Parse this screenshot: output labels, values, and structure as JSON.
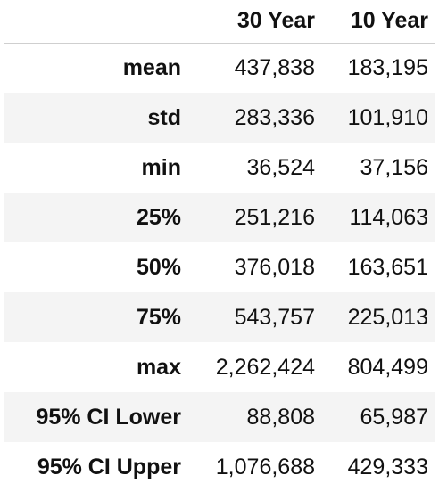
{
  "table": {
    "columns": [
      "",
      "30 Year",
      "10 Year"
    ],
    "rows": [
      {
        "label": "mean",
        "thirty": "437,838",
        "ten": "183,195"
      },
      {
        "label": "std",
        "thirty": "283,336",
        "ten": "101,910"
      },
      {
        "label": "min",
        "thirty": "36,524",
        "ten": "37,156"
      },
      {
        "label": "25%",
        "thirty": "251,216",
        "ten": "114,063"
      },
      {
        "label": "50%",
        "thirty": "376,018",
        "ten": "163,651"
      },
      {
        "label": "75%",
        "thirty": "543,757",
        "ten": "225,013"
      },
      {
        "label": "max",
        "thirty": "2,262,424",
        "ten": "804,499"
      },
      {
        "label": "95% CI Lower",
        "thirty": "88,808",
        "ten": "65,987"
      },
      {
        "label": "95% CI Upper",
        "thirty": "1,076,688",
        "ten": "429,333"
      }
    ]
  },
  "colors": {
    "stripe": "#f4f4f4",
    "header_rule": "#cfcfcf",
    "text": "#111111"
  }
}
